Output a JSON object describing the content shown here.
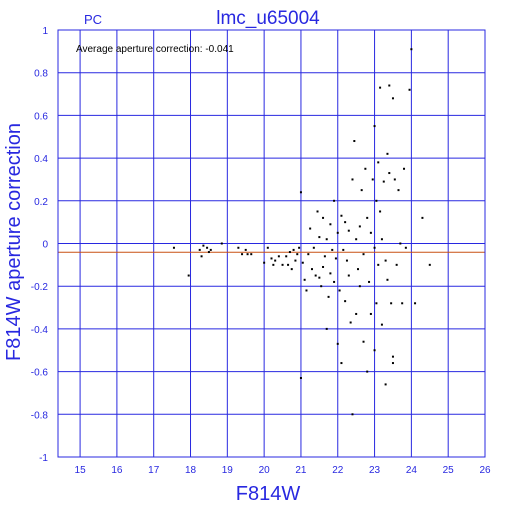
{
  "chart_data": {
    "type": "scatter",
    "title": "lmc_u65004",
    "corner_label": "PC",
    "annotation": "Average aperture correction:  -0.041",
    "xlabel": "F814W",
    "ylabel": "F814W aperture correction",
    "xlim": [
      14.4,
      26
    ],
    "ylim": [
      -1,
      1
    ],
    "x_ticks": [
      "15",
      "16",
      "17",
      "18",
      "19",
      "20",
      "21",
      "22",
      "23",
      "24",
      "25",
      "26"
    ],
    "y_ticks": [
      "1",
      "0.8",
      "0.6",
      "0.4",
      "0.2",
      "0",
      "-0.2",
      "-0.4",
      "-0.6",
      "-0.8",
      "-1"
    ],
    "reference_lines": [
      {
        "y": 0,
        "color": "#2828e0"
      },
      {
        "y": -0.041,
        "color": "#c85014"
      }
    ],
    "grid": true,
    "colors": {
      "axes": "#2828e0",
      "points": "#000000",
      "average_line": "#c85014"
    },
    "points": [
      [
        17.55,
        -0.02
      ],
      [
        17.95,
        -0.15
      ],
      [
        18.25,
        -0.03
      ],
      [
        18.3,
        -0.06
      ],
      [
        18.35,
        -0.01
      ],
      [
        18.45,
        -0.02
      ],
      [
        18.5,
        -0.04
      ],
      [
        18.55,
        -0.03
      ],
      [
        18.85,
        0.0
      ],
      [
        19.3,
        -0.02
      ],
      [
        19.4,
        -0.05
      ],
      [
        19.5,
        -0.03
      ],
      [
        19.55,
        -0.05
      ],
      [
        19.65,
        -0.05
      ],
      [
        20.0,
        -0.09
      ],
      [
        20.1,
        -0.02
      ],
      [
        20.2,
        -0.07
      ],
      [
        20.25,
        -0.1
      ],
      [
        20.3,
        -0.08
      ],
      [
        20.4,
        -0.06
      ],
      [
        20.5,
        -0.1
      ],
      [
        20.6,
        -0.06
      ],
      [
        20.65,
        -0.1
      ],
      [
        20.7,
        -0.04
      ],
      [
        20.75,
        -0.12
      ],
      [
        20.8,
        -0.03
      ],
      [
        20.85,
        -0.08
      ],
      [
        20.9,
        -0.05
      ],
      [
        20.95,
        -0.02
      ],
      [
        21.0,
        0.24
      ],
      [
        21.0,
        -0.63
      ],
      [
        21.05,
        -0.09
      ],
      [
        21.1,
        -0.17
      ],
      [
        21.15,
        -0.22
      ],
      [
        21.2,
        -0.05
      ],
      [
        21.25,
        0.07
      ],
      [
        21.3,
        -0.12
      ],
      [
        21.35,
        -0.02
      ],
      [
        21.4,
        -0.15
      ],
      [
        21.45,
        0.15
      ],
      [
        21.5,
        0.03
      ],
      [
        21.5,
        -0.16
      ],
      [
        21.55,
        -0.2
      ],
      [
        21.6,
        0.12
      ],
      [
        21.6,
        -0.11
      ],
      [
        21.65,
        -0.06
      ],
      [
        21.7,
        -0.4
      ],
      [
        21.7,
        0.02
      ],
      [
        21.75,
        -0.25
      ],
      [
        21.8,
        0.09
      ],
      [
        21.8,
        -0.14
      ],
      [
        21.85,
        -0.03
      ],
      [
        21.9,
        0.2
      ],
      [
        21.9,
        -0.18
      ],
      [
        21.95,
        -0.07
      ],
      [
        22.0,
        0.05
      ],
      [
        22.0,
        -0.47
      ],
      [
        22.05,
        -0.22
      ],
      [
        22.1,
        0.13
      ],
      [
        22.1,
        -0.56
      ],
      [
        22.15,
        -0.03
      ],
      [
        22.2,
        0.1
      ],
      [
        22.2,
        -0.27
      ],
      [
        22.25,
        -0.08
      ],
      [
        22.3,
        0.06
      ],
      [
        22.3,
        -0.15
      ],
      [
        22.35,
        -0.37
      ],
      [
        22.4,
        -0.8
      ],
      [
        22.4,
        0.3
      ],
      [
        22.45,
        0.48
      ],
      [
        22.5,
        -0.33
      ],
      [
        22.5,
        0.02
      ],
      [
        22.55,
        -0.12
      ],
      [
        22.6,
        0.08
      ],
      [
        22.6,
        -0.2
      ],
      [
        22.65,
        0.25
      ],
      [
        22.7,
        -0.05
      ],
      [
        22.7,
        -0.46
      ],
      [
        22.75,
        0.35
      ],
      [
        22.8,
        0.12
      ],
      [
        22.8,
        -0.6
      ],
      [
        22.85,
        -0.18
      ],
      [
        22.9,
        0.05
      ],
      [
        22.9,
        -0.33
      ],
      [
        22.95,
        0.3
      ],
      [
        23.0,
        0.55
      ],
      [
        23.0,
        -0.02
      ],
      [
        23.0,
        -0.5
      ],
      [
        23.05,
        0.2
      ],
      [
        23.05,
        -0.28
      ],
      [
        23.1,
        0.38
      ],
      [
        23.1,
        -0.1
      ],
      [
        23.15,
        0.73
      ],
      [
        23.15,
        0.15
      ],
      [
        23.2,
        -0.38
      ],
      [
        23.2,
        0.02
      ],
      [
        23.25,
        0.29
      ],
      [
        23.3,
        -0.08
      ],
      [
        23.3,
        -0.66
      ],
      [
        23.35,
        0.42
      ],
      [
        23.35,
        -0.17
      ],
      [
        23.4,
        0.33
      ],
      [
        23.4,
        0.74
      ],
      [
        23.45,
        -0.28
      ],
      [
        23.5,
        0.68
      ],
      [
        23.5,
        -0.53
      ],
      [
        23.5,
        -0.56
      ],
      [
        23.55,
        0.3
      ],
      [
        23.6,
        -0.1
      ],
      [
        23.65,
        0.25
      ],
      [
        23.7,
        0.0
      ],
      [
        23.75,
        -0.28
      ],
      [
        23.8,
        0.35
      ],
      [
        23.85,
        -0.02
      ],
      [
        23.95,
        0.72
      ],
      [
        24.0,
        0.91
      ],
      [
        24.1,
        -0.28
      ],
      [
        24.3,
        0.12
      ],
      [
        24.5,
        -0.1
      ]
    ]
  }
}
